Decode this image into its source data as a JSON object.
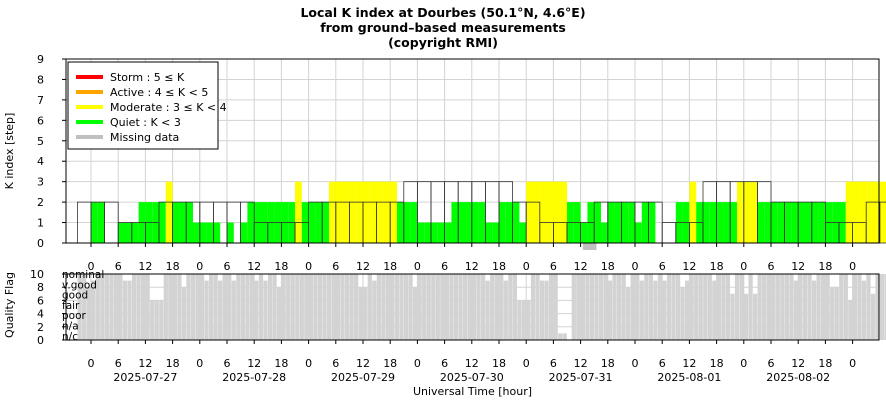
{
  "chart_data": {
    "type": "bar",
    "title_lines": [
      "Local K index at Dourbes (50.1°N, 4.6°E)",
      "from ground–based measurements",
      "(copyright RMI)"
    ],
    "colors": {
      "storm": "#ff0000",
      "active": "#ffa500",
      "moderate": "#ffff00",
      "quiet": "#00ff00",
      "missing": "#c0c0c0",
      "quality": "#d3d3d3",
      "grid": "#d3d3d3"
    },
    "top_panel": {
      "ylabel": "K index [step]",
      "ylim": [
        0,
        9
      ],
      "yticks": [
        "0",
        "1",
        "2",
        "3",
        "4",
        "5",
        "6",
        "7",
        "8",
        "9"
      ],
      "legend_position": "top-left",
      "legend": [
        {
          "label": "Storm : 5 ≤ K",
          "color_key": "storm"
        },
        {
          "label": "Active : 4 ≤ K < 5",
          "color_key": "active"
        },
        {
          "label": "Moderate : 3 ≤ K < 4",
          "color_key": "moderate"
        },
        {
          "label": "Quiet : K < 3",
          "color_key": "quiet"
        },
        {
          "label": "Missing data",
          "color_key": "missing"
        }
      ],
      "predicted_outline_K": [
        2,
        2,
        2,
        1,
        1,
        1,
        2,
        2,
        2,
        2,
        2,
        2,
        2,
        1,
        1,
        1,
        1,
        2,
        2,
        2,
        2,
        2,
        2,
        2,
        3,
        3,
        3,
        3,
        3,
        3,
        3,
        3,
        2,
        2,
        1,
        1,
        1,
        1,
        2,
        2,
        2,
        2,
        2,
        1,
        1,
        1,
        3,
        3,
        3,
        3,
        3,
        2,
        2,
        2,
        2,
        1,
        1,
        1,
        2,
        2,
        2,
        2,
        2,
        2,
        3,
        3,
        3,
        2,
        2,
        2,
        2,
        2,
        2,
        2,
        2,
        2,
        2,
        2,
        3,
        3,
        3,
        3,
        3,
        3,
        3,
        3,
        3,
        2,
        2,
        2,
        2,
        2,
        2,
        3,
        3,
        3,
        2,
        2,
        2,
        2,
        2
      ],
      "measured_K": [
        2,
        2,
        0,
        0,
        1,
        1,
        1,
        2,
        2,
        2,
        2,
        3,
        2,
        2,
        2,
        1,
        1,
        1,
        1,
        0,
        1,
        0,
        1,
        2,
        2,
        2,
        2,
        2,
        2,
        2,
        3,
        2,
        2,
        2,
        2,
        3,
        3,
        3,
        3,
        3,
        3,
        3,
        3,
        3,
        3,
        2,
        2,
        2,
        1,
        1,
        1,
        1,
        1,
        2,
        2,
        2,
        2,
        2,
        1,
        1,
        2,
        2,
        2,
        1,
        3,
        3,
        3,
        3,
        3,
        3,
        2,
        2,
        1,
        2,
        2,
        1,
        2,
        2,
        2,
        2,
        1,
        2,
        2,
        0,
        0,
        0,
        2,
        2,
        3,
        2,
        2,
        2,
        2,
        2,
        2,
        3,
        3,
        3,
        2,
        2,
        2,
        2,
        2,
        2,
        2,
        2,
        2,
        2,
        2,
        2,
        2,
        3,
        3,
        3,
        3,
        3,
        3,
        3,
        3,
        3,
        3,
        3,
        3,
        3,
        3,
        3,
        3,
        3,
        2,
        2,
        2,
        2,
        2,
        2,
        2,
        2,
        3,
        3,
        3,
        2,
        2,
        2,
        2,
        2,
        2,
        2,
        2,
        2,
        3,
        3
      ]
    },
    "bottom_panel": {
      "ylabel": "Quality Flag",
      "ylim": [
        0,
        10
      ],
      "yticks": [
        "0",
        "2",
        "4",
        "6",
        "8",
        "10"
      ],
      "flag_labels": [
        "nominal",
        "v.good",
        "good",
        "fair",
        "poor",
        "n/a",
        "n/c"
      ],
      "quality": [
        10,
        10,
        8,
        9,
        10,
        10,
        10,
        10,
        10,
        10,
        9,
        9,
        10,
        10,
        10,
        10,
        6,
        6,
        6,
        10,
        10,
        10,
        10,
        8,
        10,
        10,
        10,
        10,
        9,
        10,
        10,
        9,
        10,
        10,
        9,
        10,
        10,
        10,
        10,
        9,
        10,
        9,
        10,
        10,
        8,
        10,
        10,
        10,
        10,
        10,
        10,
        10,
        10,
        10,
        10,
        10,
        10,
        10,
        10,
        10,
        10,
        10,
        8,
        8,
        10,
        9,
        10,
        10,
        10,
        10,
        10,
        10,
        10,
        10,
        8,
        10,
        10,
        10,
        10,
        10,
        10,
        10,
        10,
        10,
        10,
        10,
        10,
        10,
        10,
        10,
        9,
        10,
        10,
        10,
        9,
        10,
        10,
        6,
        6,
        6,
        10,
        10,
        9,
        9,
        10,
        10,
        1,
        1,
        0,
        10,
        10,
        10,
        10,
        10,
        10,
        10,
        10,
        9,
        10,
        10,
        10,
        8,
        10,
        10,
        9,
        10,
        10,
        9,
        10,
        9,
        10,
        10,
        10,
        8,
        9,
        10,
        10,
        10,
        10,
        10,
        9,
        10,
        10,
        10,
        7,
        10,
        10,
        7,
        10,
        7,
        10,
        10,
        10,
        10,
        10,
        10,
        10,
        10,
        9,
        10,
        10,
        10,
        9,
        10,
        10,
        10,
        8,
        8,
        10,
        10,
        6,
        10,
        10,
        9,
        10,
        7,
        10,
        10,
        10,
        10,
        6,
        10,
        10,
        10,
        10,
        10,
        10,
        10,
        10,
        10,
        10,
        8,
        10,
        10,
        10,
        10,
        10,
        10,
        8,
        8,
        10,
        10,
        10,
        6,
        6,
        6,
        6,
        10,
        10,
        10
      ]
    },
    "x_axis": {
      "xlabel": "Universal Time [hour]",
      "hour_ticks": [
        "0",
        "6",
        "12",
        "18",
        "0",
        "6",
        "12",
        "18",
        "0",
        "6",
        "12",
        "18",
        "0",
        "6",
        "12",
        "18",
        "0",
        "6",
        "12",
        "18",
        "0",
        "6",
        "12",
        "18",
        "0",
        "6",
        "12",
        "18",
        "0"
      ],
      "dates": [
        "2025-07-27",
        "2025-07-28",
        "2025-07-29",
        "2025-07-30",
        "2025-07-31",
        "2025-08-01",
        "2025-08-02"
      ]
    }
  }
}
